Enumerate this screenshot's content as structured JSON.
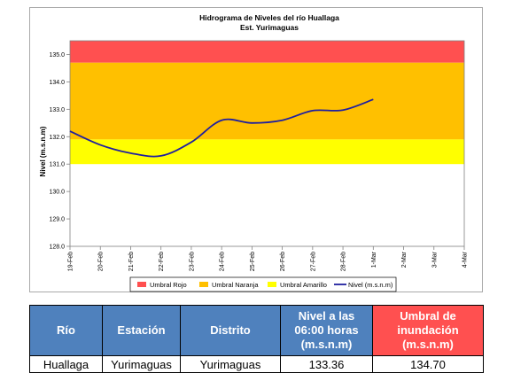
{
  "chart_data": {
    "type": "line",
    "title": "Hidrograma de Niveles del río Huallaga",
    "subtitle": "Est. Yurimaguas",
    "ylabel": "Nivel (m.s.n.m)",
    "xlabel": "",
    "x_ticks": [
      "19-Feb",
      "20-Feb",
      "21-Feb",
      "22-Feb",
      "23-Feb",
      "24-Feb",
      "25-Feb",
      "26-Feb",
      "27-Feb",
      "28-Feb",
      "1-Mar",
      "2-Mar",
      "3-Mar",
      "4-Mar"
    ],
    "y_ticks": [
      "128.0",
      "129.0",
      "130.0",
      "131.0",
      "132.0",
      "133.0",
      "134.0",
      "135.0"
    ],
    "ylim": [
      128.0,
      135.5
    ],
    "bands": [
      {
        "name": "Umbral Rojo",
        "from": 134.7,
        "to": 135.5,
        "color": "#ff5050"
      },
      {
        "name": "Umbral Naranja",
        "from": 131.9,
        "to": 134.7,
        "color": "#ffc000"
      },
      {
        "name": "Umbral Amarillo",
        "from": 131.0,
        "to": 131.9,
        "color": "#ffff00"
      }
    ],
    "series": [
      {
        "name": "Nivel (m.s.n.m)",
        "color": "#1f1f9f",
        "x": [
          "19-Feb",
          "20-Feb",
          "21-Feb",
          "22-Feb",
          "23-Feb",
          "24-Feb",
          "25-Feb",
          "26-Feb",
          "27-Feb",
          "28-Feb",
          "1-Mar"
        ],
        "values": [
          132.2,
          131.7,
          131.4,
          131.3,
          131.8,
          132.6,
          132.5,
          132.6,
          132.95,
          132.97,
          133.36
        ]
      }
    ],
    "legend": {
      "position": "bottom",
      "items": [
        {
          "label": "Umbral Rojo",
          "color": "#ff5050",
          "kind": "box"
        },
        {
          "label": "Umbral Naranja",
          "color": "#ffc000",
          "kind": "box"
        },
        {
          "label": "Umbral Amarillo",
          "color": "#ffff00",
          "kind": "box"
        },
        {
          "label": "Nivel (m.s.n.m)",
          "color": "#1f1f9f",
          "kind": "line"
        }
      ]
    },
    "grid": false
  },
  "table": {
    "headers": [
      {
        "label": "Río",
        "color": "#4f81bd"
      },
      {
        "label": "Estación",
        "color": "#4f81bd"
      },
      {
        "label": "Distrito",
        "color": "#4f81bd"
      },
      {
        "label": "Nivel a las 06:00 horas (m.s.n.m)",
        "color": "#4f81bd"
      },
      {
        "label": "Umbral de inundación (m.s.n.m)",
        "color": "#ff5050"
      }
    ],
    "row": [
      "Huallaga",
      "Yurimaguas",
      "Yurimaguas",
      "133.36",
      "134.70"
    ]
  }
}
